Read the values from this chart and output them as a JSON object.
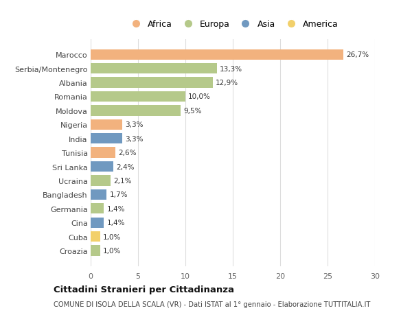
{
  "categories": [
    "Croazia",
    "Cuba",
    "Cina",
    "Germania",
    "Bangladesh",
    "Ucraina",
    "Sri Lanka",
    "Tunisia",
    "India",
    "Nigeria",
    "Moldova",
    "Romania",
    "Albania",
    "Serbia/Montenegro",
    "Marocco"
  ],
  "values": [
    1.0,
    1.0,
    1.4,
    1.4,
    1.7,
    2.1,
    2.4,
    2.6,
    3.3,
    3.3,
    9.5,
    10.0,
    12.9,
    13.3,
    26.7
  ],
  "labels": [
    "1,0%",
    "1,0%",
    "1,4%",
    "1,4%",
    "1,7%",
    "2,1%",
    "2,4%",
    "2,6%",
    "3,3%",
    "3,3%",
    "9,5%",
    "10,0%",
    "12,9%",
    "13,3%",
    "26,7%"
  ],
  "continents": [
    "Europa",
    "America",
    "Asia",
    "Europa",
    "Asia",
    "Europa",
    "Asia",
    "Africa",
    "Asia",
    "Africa",
    "Europa",
    "Europa",
    "Europa",
    "Europa",
    "Africa"
  ],
  "colors": {
    "Africa": "#F2B27E",
    "Europa": "#B5C98A",
    "Asia": "#7099C0",
    "America": "#F2D06B"
  },
  "legend_order": [
    "Africa",
    "Europa",
    "Asia",
    "America"
  ],
  "title": "Cittadini Stranieri per Cittadinanza",
  "subtitle": "COMUNE DI ISOLA DELLA SCALA (VR) - Dati ISTAT al 1° gennaio - Elaborazione TUTTITALIA.IT",
  "xlim": [
    0,
    30
  ],
  "xticks": [
    0,
    5,
    10,
    15,
    20,
    25,
    30
  ],
  "bg_color": "#FFFFFF",
  "grid_color": "#DDDDDD",
  "bar_height": 0.75
}
